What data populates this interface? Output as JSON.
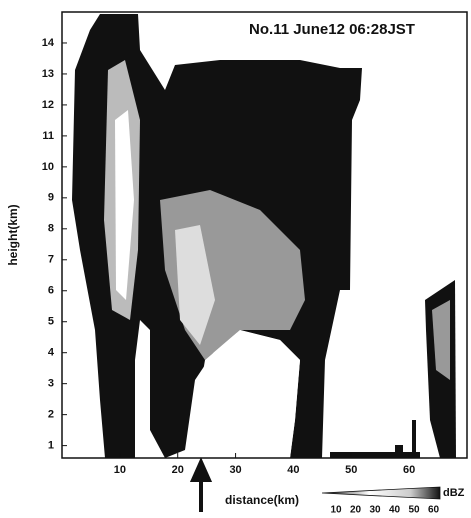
{
  "chart_data": {
    "type": "radar-rhi",
    "title": "No.11  June12  06:28JST",
    "xlabel": "distance(km)",
    "ylabel": "height(km)",
    "xlim": [
      0,
      70
    ],
    "ylim": [
      0.6,
      15
    ],
    "xticks": [
      10,
      20,
      30,
      40,
      50,
      60
    ],
    "yticks": [
      1,
      2,
      3,
      4,
      5,
      6,
      7,
      8,
      9,
      10,
      11,
      12,
      13,
      14
    ],
    "colorbar": {
      "ticks": [
        10,
        20,
        30,
        40,
        50,
        60
      ],
      "label": "dBZ"
    }
  }
}
